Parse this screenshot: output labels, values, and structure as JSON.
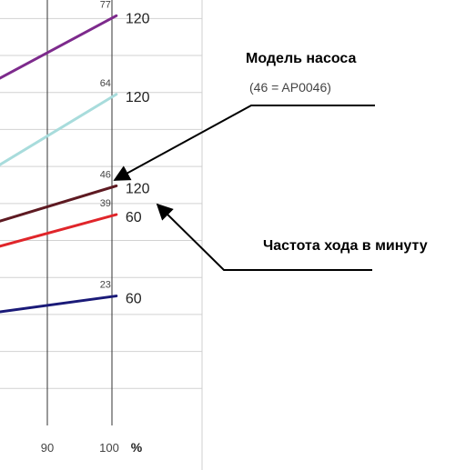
{
  "chart_data": {
    "type": "line",
    "xlabel": "%",
    "x_ticks": [
      90,
      100
    ],
    "xlim": [
      81,
      114
    ],
    "ylim": [
      0,
      460
    ],
    "grid": true,
    "series": [
      {
        "model": "77",
        "strokes_per_minute": "120",
        "color": "#7d2a8c",
        "points": [
          [
            80,
            372
          ],
          [
            100,
            443
          ]
        ]
      },
      {
        "model": "64",
        "strokes_per_minute": "120",
        "color": "#a8dcdc",
        "points": [
          [
            80,
            278
          ],
          [
            100,
            358
          ]
        ]
      },
      {
        "model": "46",
        "strokes_per_minute": "120",
        "color": "#5e1a22",
        "points": [
          [
            80,
            219
          ],
          [
            100,
            259
          ]
        ]
      },
      {
        "model": "39",
        "strokes_per_minute": "60",
        "color": "#e0252a",
        "points": [
          [
            80,
            192
          ],
          [
            100,
            228
          ]
        ]
      },
      {
        "model": "23",
        "strokes_per_minute": "60",
        "color": "#1a1a78",
        "points": [
          [
            80,
            122
          ],
          [
            100,
            140
          ]
        ]
      }
    ],
    "annotations": [
      {
        "title": "Модель насоса",
        "subtitle": "(46 = AP0046)"
      },
      {
        "title": "Частота хода в минуту",
        "subtitle": ""
      }
    ]
  }
}
